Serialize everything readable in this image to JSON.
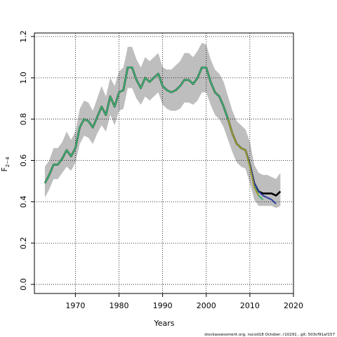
{
  "chart_data": {
    "type": "line",
    "x_label": "Years",
    "y_label": "F",
    "y_label_subscript": "2−4",
    "footer": "stockassessment.org, nscod18 October, r10291 , git: 503cf91af157",
    "xlim": [
      1960.6,
      2020
    ],
    "ylim": [
      -0.044,
      1.217
    ],
    "xticks": [
      1970,
      1980,
      1990,
      2000,
      2010,
      2020
    ],
    "yticks": [
      {
        "value": 0,
        "label": "0.0"
      },
      {
        "value": 0.2,
        "label": "0.2"
      },
      {
        "value": 0.4,
        "label": "0.4"
      },
      {
        "value": 0.6,
        "label": "0.6"
      },
      {
        "value": 0.8,
        "label": "0.8"
      },
      {
        "value": 1,
        "label": "1.0"
      },
      {
        "value": 1.2,
        "label": "1.2"
      }
    ],
    "grid": true,
    "band": {
      "color": "#bebebe",
      "x": [
        1963,
        1964,
        1965,
        1966,
        1967,
        1968,
        1969,
        1970,
        1971,
        1972,
        1973,
        1974,
        1975,
        1976,
        1977,
        1978,
        1979,
        1980,
        1981,
        1982,
        1983,
        1984,
        1985,
        1986,
        1987,
        1988,
        1989,
        1990,
        1991,
        1992,
        1993,
        1994,
        1995,
        1996,
        1997,
        1998,
        1999,
        2000,
        2001,
        2002,
        2003,
        2004,
        2005,
        2006,
        2007,
        2008,
        2009,
        2010,
        2011,
        2012,
        2013,
        2014,
        2015,
        2016,
        2017
      ],
      "upper": [
        0.57,
        0.6,
        0.66,
        0.66,
        0.69,
        0.74,
        0.7,
        0.74,
        0.85,
        0.89,
        0.88,
        0.84,
        0.9,
        0.96,
        0.91,
        1.0,
        0.96,
        1.03,
        1.05,
        1.15,
        1.15,
        1.09,
        1.05,
        1.1,
        1.08,
        1.1,
        1.12,
        1.05,
        1.04,
        1.04,
        1.06,
        1.08,
        1.12,
        1.12,
        1.1,
        1.13,
        1.17,
        1.16,
        1.09,
        1.04,
        1.02,
        0.98,
        0.91,
        0.84,
        0.79,
        0.77,
        0.75,
        0.69,
        0.58,
        0.54,
        0.53,
        0.53,
        0.52,
        0.51,
        0.54
      ],
      "lower": [
        0.42,
        0.46,
        0.51,
        0.51,
        0.54,
        0.57,
        0.55,
        0.59,
        0.68,
        0.72,
        0.71,
        0.68,
        0.73,
        0.77,
        0.74,
        0.82,
        0.77,
        0.84,
        0.85,
        0.95,
        0.95,
        0.9,
        0.87,
        0.91,
        0.89,
        0.91,
        0.93,
        0.87,
        0.85,
        0.84,
        0.84,
        0.85,
        0.88,
        0.88,
        0.87,
        0.89,
        0.93,
        0.93,
        0.87,
        0.82,
        0.8,
        0.76,
        0.7,
        0.64,
        0.59,
        0.57,
        0.56,
        0.49,
        0.41,
        0.38,
        0.38,
        0.38,
        0.38,
        0.37,
        0.38
      ]
    },
    "series": [
      {
        "color": "#000000",
        "x": [
          1963,
          1964,
          1965,
          1966,
          1967,
          1968,
          1969,
          1970,
          1971,
          1972,
          1973,
          1974,
          1975,
          1976,
          1977,
          1978,
          1979,
          1980,
          1981,
          1982,
          1983,
          1984,
          1985,
          1986,
          1987,
          1988,
          1989,
          1990,
          1991,
          1992,
          1993,
          1994,
          1995,
          1996,
          1997,
          1998,
          1999,
          2000,
          2001,
          2002,
          2003,
          2004,
          2005,
          2006,
          2007,
          2008,
          2009,
          2010,
          2011,
          2012,
          2013,
          2014,
          2015,
          2016,
          2017
        ],
        "values": [
          0.49,
          0.53,
          0.58,
          0.58,
          0.61,
          0.65,
          0.62,
          0.66,
          0.76,
          0.8,
          0.79,
          0.76,
          0.81,
          0.86,
          0.82,
          0.91,
          0.86,
          0.93,
          0.94,
          1.05,
          1.05,
          0.99,
          0.95,
          1.0,
          0.98,
          1.0,
          1.02,
          0.96,
          0.94,
          0.93,
          0.94,
          0.96,
          0.99,
          0.99,
          0.97,
          1.0,
          1.05,
          1.05,
          0.98,
          0.93,
          0.91,
          0.86,
          0.8,
          0.73,
          0.68,
          0.66,
          0.65,
          0.58,
          0.49,
          0.45,
          0.44,
          0.44,
          0.44,
          0.43,
          0.45
        ]
      },
      {
        "color": "#3cb371",
        "x": [
          1963,
          1964,
          1965,
          1966,
          1967,
          1968,
          1969,
          1970,
          1971,
          1972,
          1973,
          1974,
          1975,
          1976,
          1977,
          1978,
          1979,
          1980,
          1981,
          1982,
          1983,
          1984,
          1985,
          1986,
          1987,
          1988,
          1989,
          1990,
          1991,
          1992,
          1993,
          1994,
          1995,
          1996,
          1997,
          1998,
          1999,
          2000,
          2001,
          2002,
          2003,
          2004,
          2005,
          2006,
          2007,
          2008,
          2009,
          2010,
          2011,
          2012,
          2013
        ],
        "values": [
          0.49,
          0.53,
          0.58,
          0.58,
          0.61,
          0.65,
          0.62,
          0.66,
          0.76,
          0.8,
          0.79,
          0.76,
          0.81,
          0.86,
          0.82,
          0.91,
          0.86,
          0.93,
          0.94,
          1.05,
          1.05,
          0.99,
          0.95,
          1.0,
          0.98,
          1.0,
          1.02,
          0.96,
          0.94,
          0.93,
          0.94,
          0.96,
          0.99,
          0.99,
          0.97,
          1.0,
          1.05,
          1.05,
          0.98,
          0.93,
          0.91,
          0.86,
          0.8,
          0.73,
          0.68,
          0.66,
          0.65,
          0.58,
          0.48,
          0.43,
          0.41
        ]
      },
      {
        "color": "#2b3fa0",
        "x": [
          2005,
          2006,
          2007,
          2008,
          2009,
          2010,
          2011,
          2012,
          2013,
          2014,
          2015,
          2016
        ],
        "values": [
          0.8,
          0.73,
          0.68,
          0.66,
          0.65,
          0.58,
          0.49,
          0.45,
          0.43,
          0.42,
          0.41,
          0.39
        ]
      },
      {
        "color": "#9a9a2a",
        "x": [
          2005,
          2006,
          2007,
          2008,
          2009,
          2010,
          2011,
          2012
        ],
        "values": [
          0.8,
          0.73,
          0.68,
          0.66,
          0.65,
          0.57,
          0.47,
          0.43
        ]
      }
    ]
  }
}
